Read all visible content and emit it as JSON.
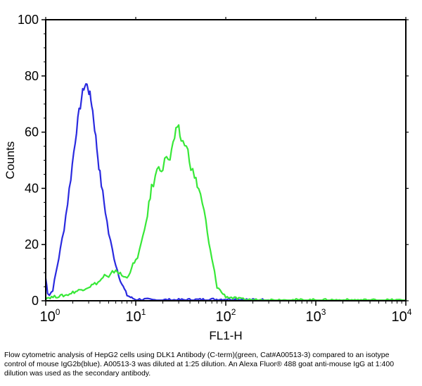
{
  "chart_data": {
    "type": "line",
    "title": "",
    "xlabel": "FL1-H",
    "ylabel": "Counts",
    "x_scale": "log",
    "xlim": [
      1,
      10000
    ],
    "ylim": [
      0,
      100
    ],
    "x_ticks": [
      {
        "base": "10",
        "exp": "0",
        "value": 1
      },
      {
        "base": "10",
        "exp": "1",
        "value": 10
      },
      {
        "base": "10",
        "exp": "2",
        "value": 100
      },
      {
        "base": "10",
        "exp": "3",
        "value": 1000
      },
      {
        "base": "10",
        "exp": "4",
        "value": 10000
      }
    ],
    "y_ticks": [
      "0",
      "20",
      "40",
      "60",
      "80",
      "100"
    ],
    "grid": false,
    "legend": "none",
    "series": [
      {
        "color": "#2a2adf",
        "x": [
          1.0,
          1.05,
          1.1,
          1.2,
          1.3,
          1.45,
          1.6,
          1.75,
          1.9,
          2.05,
          2.2,
          2.35,
          2.5,
          2.65,
          2.8,
          2.95,
          3.1,
          3.25,
          3.4,
          3.6,
          3.8,
          4.0,
          4.3,
          4.6,
          5.0,
          5.5,
          6.0,
          6.5,
          7.0,
          7.5,
          8.0,
          8.5,
          9.0,
          10.0,
          11.0,
          12.5,
          15.0,
          20.0,
          30.0,
          50.0,
          70.0,
          100.0,
          150.0,
          200.0,
          300.0
        ],
        "values": [
          8,
          3,
          2,
          4,
          10,
          18,
          26,
          35,
          44,
          53,
          61,
          67,
          72,
          76,
          77,
          76,
          73,
          70,
          65,
          58,
          51,
          45,
          38,
          32,
          24,
          18,
          13,
          9,
          6,
          4,
          2,
          1.5,
          1,
          0.5,
          0.5,
          0.5,
          0.3,
          0.3,
          0.3,
          0.4,
          0.5,
          0.6,
          0.5,
          0.3,
          0.3
        ]
      },
      {
        "color": "#38e838",
        "x": [
          1.0,
          1.3,
          1.7,
          2.0,
          2.5,
          3.0,
          3.5,
          4.0,
          4.5,
          5.0,
          5.5,
          6.0,
          7.0,
          8.0,
          9.0,
          10.0,
          11.0,
          12.0,
          13.0,
          14.0,
          15.0,
          16.5,
          18.0,
          20.0,
          22.0,
          24.0,
          26.0,
          28.0,
          30.0,
          32.0,
          35.0,
          38.0,
          41.0,
          45.0,
          50.0,
          55.0,
          60.0,
          65.0,
          70.0,
          75.0,
          80.0,
          90.0,
          100.0,
          120.0,
          150.0,
          200.0,
          10000.0
        ],
        "values": [
          1,
          1.5,
          2,
          3,
          4,
          5,
          6,
          7,
          9,
          8,
          10,
          11,
          9,
          8,
          12,
          14,
          18,
          22,
          28,
          34,
          40,
          44,
          48,
          47,
          52,
          50,
          56,
          60,
          61,
          57,
          56,
          53,
          48,
          44,
          40,
          35,
          28,
          20,
          15,
          10,
          5,
          3,
          1.5,
          1,
          0.5,
          0.3,
          0.2
        ]
      }
    ]
  },
  "caption": "Flow cytometric analysis of HepG2 cells using DLK1 Antibody (C-term)(green, Cat#A00513-3) compared to an isotype control of mouse IgG2b(blue). A00513-3 was diluted at 1:25 dilution. An Alexa Fluor® 488 goat anti-mouse IgG at 1:400 dilution was used as the secondary antibody."
}
